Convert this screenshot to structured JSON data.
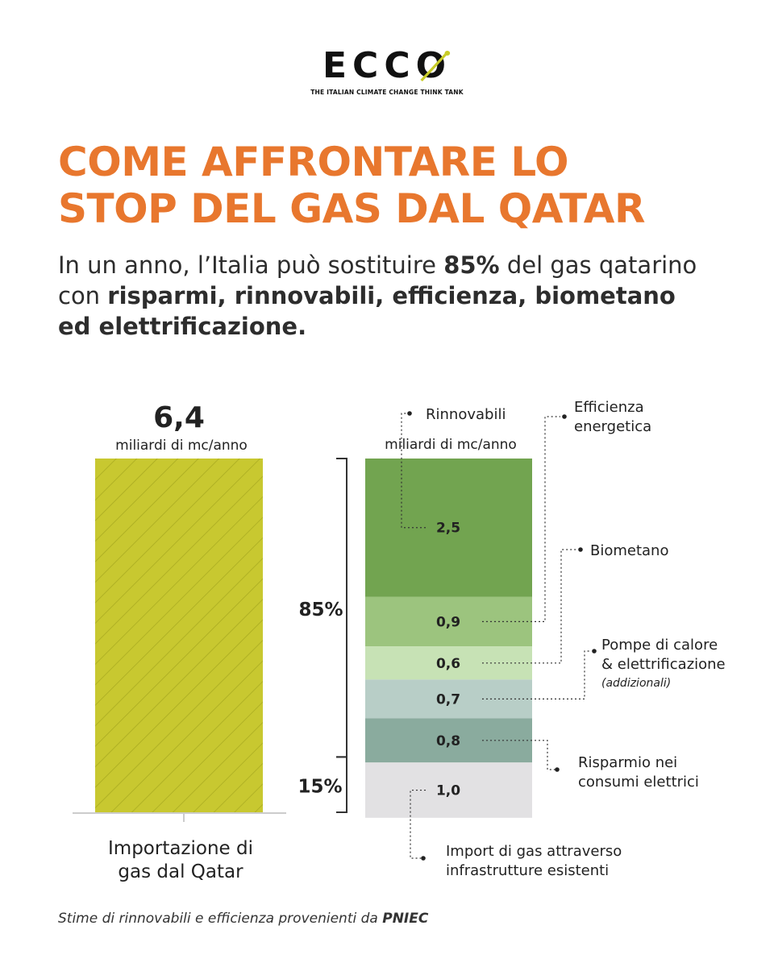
{
  "logo": {
    "wordmark": "ECCO",
    "tagline": "THE ITALIAN CLIMATE CHANGE THINK TANK",
    "accent_color": "#c8cc28"
  },
  "title_lines": [
    "COME AFFRONTARE LO",
    "STOP DEL GAS DAL QATAR"
  ],
  "subtitle": {
    "pre": "In un anno, l’Italia può sostituire ",
    "bold1": "85%",
    "mid": " del gas qatarino con ",
    "bold2": "risparmi, rinnovabili, efficienza, biometano ed elettrificazione."
  },
  "chart_data": {
    "type": "bar",
    "unit": "miliardi di mc/anno",
    "import_bar": {
      "value": 6.4,
      "value_label": "6,4",
      "unit_label": "miliardi di mc/anno",
      "category_lines": [
        "Importazione di",
        "gas dal Qatar"
      ],
      "color": "#c8c830"
    },
    "breakdown_unit_label": "miliardi di mc/anno",
    "segments": [
      {
        "name": "Rinnovabili",
        "value": 2.5,
        "value_label": "2,5",
        "color": "#72a450"
      },
      {
        "name": "Efficienza energetica",
        "value": 0.9,
        "value_label": "0,9",
        "color": "#9cc47e"
      },
      {
        "name": "Biometano",
        "value": 0.6,
        "value_label": "0,6",
        "color": "#c7e2b5"
      },
      {
        "name": "Pompe di calore & elettrificazione",
        "value": 0.7,
        "value_label": "0,7",
        "color": "#b8cec7"
      },
      {
        "name": "Risparmio nei consumi elettrici",
        "value": 0.8,
        "value_label": "0,8",
        "color": "#8aab9e"
      },
      {
        "name": "Import di gas attraverso infrastrutture esistenti",
        "value": 1.0,
        "value_label": "1,0",
        "color": "#e2e1e3"
      }
    ],
    "annotations": [
      {
        "lines": [
          "Rinnovabili"
        ]
      },
      {
        "lines": [
          "Efficienza",
          "energetica"
        ]
      },
      {
        "lines": [
          "Biometano"
        ]
      },
      {
        "lines": [
          "Pompe di calore",
          "& elettrificazione"
        ],
        "note": "(addizionali)"
      },
      {
        "lines": [
          "Risparmio nei",
          "consumi elettrici"
        ]
      },
      {
        "lines": [
          "Import di gas attraverso",
          "infrastrutture esistenti"
        ]
      }
    ],
    "brackets": [
      {
        "label": "85%"
      },
      {
        "label": "15%"
      }
    ]
  },
  "footnote": {
    "pre": "Stime di rinnovabili e efficienza provenienti da ",
    "bold": "PNIEC"
  }
}
